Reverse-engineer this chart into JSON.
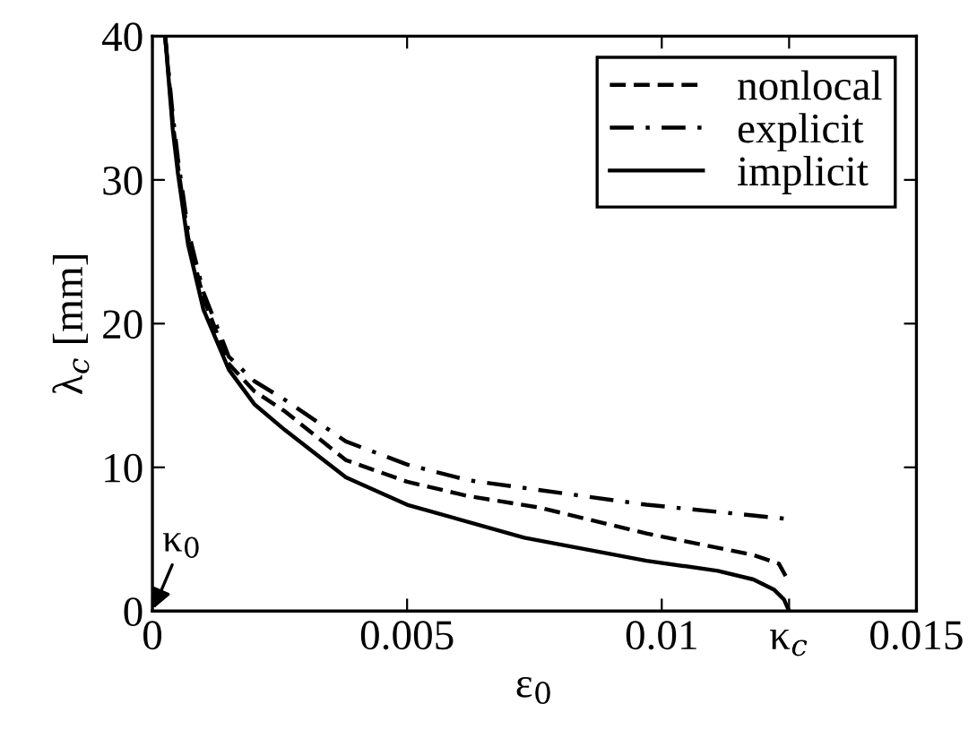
{
  "chart_data": {
    "type": "line",
    "xlabel": "ε$_{0}$",
    "ylabel": "λ$_{c}$ [mm]",
    "xlim": [
      0,
      0.015
    ],
    "ylim": [
      0,
      40
    ],
    "xticks": [
      0,
      0.005,
      0.01,
      {
        "value": 0.0125,
        "label": "κ$_{c}$"
      },
      0.015
    ],
    "yticks": [
      0,
      10,
      20,
      30,
      40
    ],
    "grid": false,
    "legend": "top right",
    "annotations": [
      "κ$_{0}$"
    ],
    "series": [
      {
        "name": "nonlocal",
        "color": "#000000",
        "line_style": "dashed",
        "x": [
          0.00025,
          0.0004,
          0.0005,
          0.0007,
          0.001,
          0.0015,
          0.002,
          0.0026,
          0.0038,
          0.005,
          0.0062,
          0.0076,
          0.0097,
          0.0118,
          0.0123,
          0.0125
        ],
        "values": [
          40,
          34,
          31,
          26,
          21.8,
          17.2,
          15.3,
          13.9,
          10.5,
          9.0,
          8.0,
          7.2,
          5.4,
          3.9,
          3.3,
          2.0
        ]
      },
      {
        "name": "explicit",
        "color": "#000000",
        "line_style": "dashdot",
        "x": [
          0.00025,
          0.0004,
          0.0005,
          0.0007,
          0.001,
          0.0015,
          0.002,
          0.0026,
          0.0038,
          0.005,
          0.0062,
          0.0097,
          0.0125
        ],
        "values": [
          40,
          34.5,
          31.5,
          26.5,
          22.2,
          17.7,
          16.0,
          14.7,
          11.8,
          10.2,
          9.1,
          7.4,
          6.4
        ]
      },
      {
        "name": "implicit",
        "color": "#000000",
        "line_style": "solid",
        "x": [
          0.00025,
          0.0004,
          0.0005,
          0.0007,
          0.001,
          0.0015,
          0.002,
          0.0026,
          0.0038,
          0.005,
          0.0073,
          0.0097,
          0.0111,
          0.0118,
          0.0122,
          0.0124,
          0.0125
        ],
        "values": [
          40,
          33.5,
          30.5,
          25.5,
          21,
          16.8,
          14.4,
          12.6,
          9.3,
          7.4,
          5.1,
          3.5,
          2.8,
          2.2,
          1.5,
          0.8,
          0
        ]
      }
    ]
  }
}
